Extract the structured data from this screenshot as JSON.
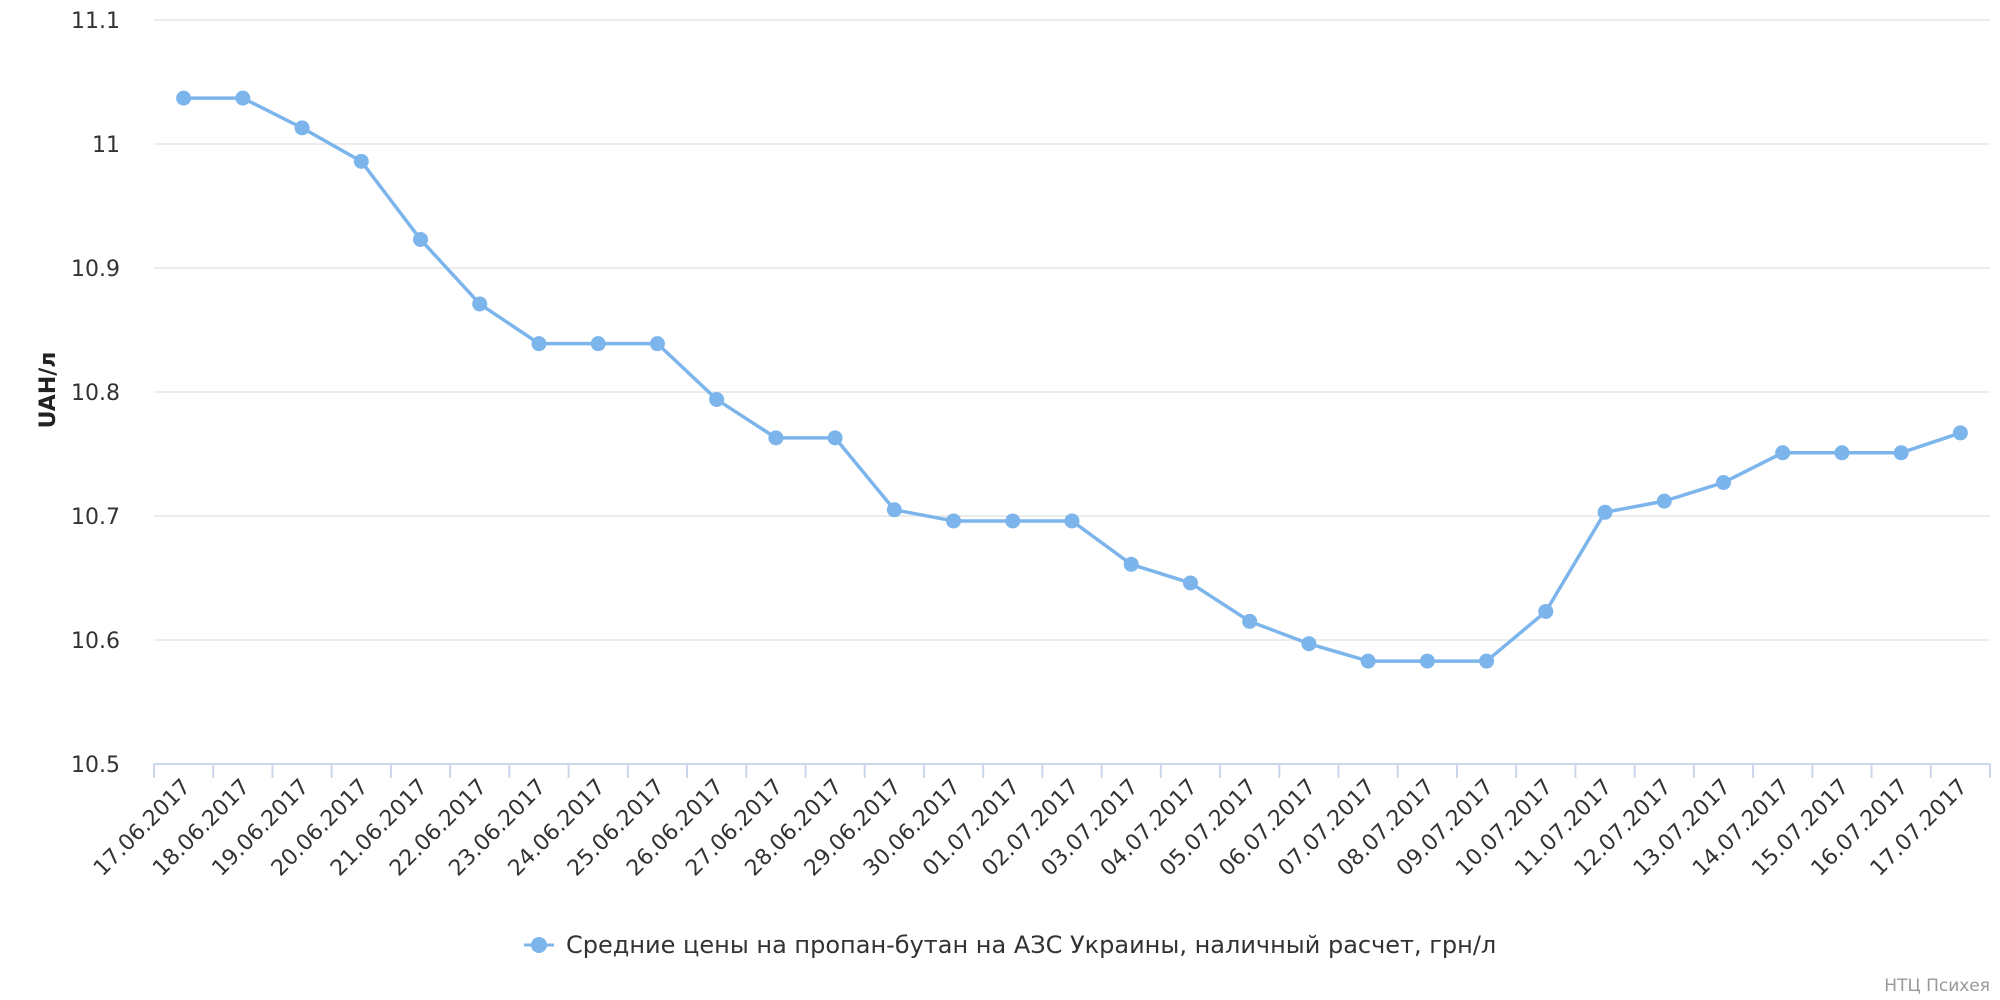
{
  "chart_data": {
    "type": "line",
    "title": "",
    "xlabel": "",
    "ylabel": "UAH/л",
    "ylim": [
      10.5,
      11.1
    ],
    "y_ticks": [
      "10.5",
      "10.6",
      "10.7",
      "10.8",
      "10.9",
      "11",
      "11.1"
    ],
    "grid": true,
    "legend_position": "bottom-center",
    "categories": [
      "17.06.2017",
      "18.06.2017",
      "19.06.2017",
      "20.06.2017",
      "21.06.2017",
      "22.06.2017",
      "23.06.2017",
      "24.06.2017",
      "25.06.2017",
      "26.06.2017",
      "27.06.2017",
      "28.06.2017",
      "29.06.2017",
      "30.06.2017",
      "01.07.2017",
      "02.07.2017",
      "03.07.2017",
      "04.07.2017",
      "05.07.2017",
      "06.07.2017",
      "07.07.2017",
      "08.07.2017",
      "09.07.2017",
      "10.07.2017",
      "11.07.2017",
      "12.07.2017",
      "13.07.2017",
      "14.07.2017",
      "15.07.2017",
      "16.07.2017",
      "17.07.2017"
    ],
    "series": [
      {
        "name": "Средние цены на пропан-бутан на АЗС Украины, наличный расчет, грн/л",
        "color": "#7cb5ec",
        "values": [
          11.037,
          11.037,
          11.013,
          10.986,
          10.923,
          10.871,
          10.839,
          10.839,
          10.839,
          10.794,
          10.763,
          10.763,
          10.705,
          10.696,
          10.696,
          10.696,
          10.661,
          10.646,
          10.615,
          10.597,
          10.583,
          10.583,
          10.583,
          10.623,
          10.703,
          10.712,
          10.727,
          10.751,
          10.751,
          10.751,
          10.767
        ]
      }
    ],
    "credit": "НТЦ Психея"
  },
  "colors": {
    "gridline": "#e6e6e6",
    "axis": "#ccd6eb",
    "series": "#7cb5ec"
  }
}
